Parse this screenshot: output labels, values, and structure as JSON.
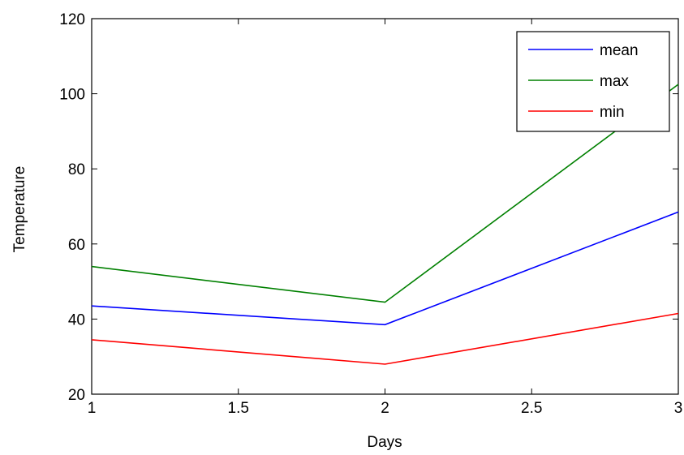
{
  "chart_data": {
    "type": "line",
    "title": "",
    "xlabel": "Days",
    "ylabel": "Temperature",
    "xlim": [
      1,
      3
    ],
    "ylim": [
      20,
      120
    ],
    "x": [
      1,
      2,
      3
    ],
    "xticks": [
      1,
      1.5,
      2,
      2.5,
      3
    ],
    "xtick_labels": [
      "1",
      "1.5",
      "2",
      "2.5",
      "3"
    ],
    "yticks": [
      20,
      40,
      60,
      80,
      100,
      120
    ],
    "ytick_labels": [
      "20",
      "40",
      "60",
      "80",
      "100",
      "120"
    ],
    "grid": false,
    "legend_position": "top-right",
    "series": [
      {
        "name": "mean",
        "values": [
          43.5,
          38.5,
          68.5
        ],
        "color": "#0000ff"
      },
      {
        "name": "max",
        "values": [
          54,
          44.5,
          102.5
        ],
        "color": "#008000"
      },
      {
        "name": "min",
        "values": [
          34.5,
          28,
          41.5
        ],
        "color": "#ff0000"
      }
    ]
  }
}
